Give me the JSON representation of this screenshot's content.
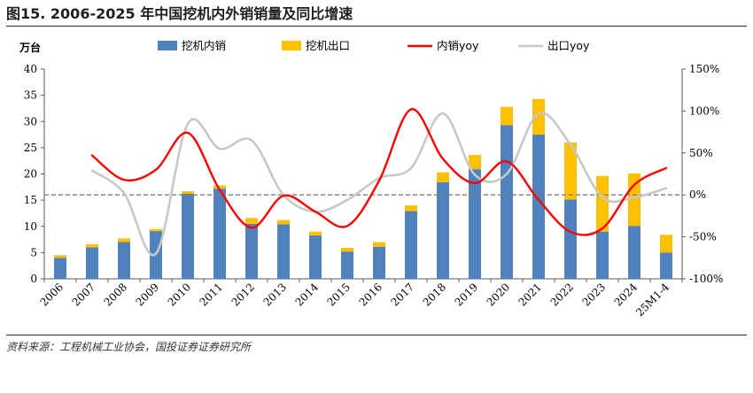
{
  "title": "图15. 2006-2025 年中国挖机内外销销量及同比增速",
  "source": "资料来源：工程机械工业协会，国投证券证券研究所",
  "chart_data": {
    "type": "bar+line",
    "unit_label": "万台",
    "categories": [
      "2006",
      "2007",
      "2008",
      "2009",
      "2010",
      "2011",
      "2012",
      "2013",
      "2014",
      "2015",
      "2016",
      "2017",
      "2018",
      "2019",
      "2020",
      "2021",
      "2022",
      "2023",
      "2024",
      "25M1-4"
    ],
    "stacked_bars": [
      {
        "name": "挖机内销",
        "color": "#4f81bd",
        "values": [
          4.0,
          6.0,
          7.0,
          9.1,
          16.2,
          17.2,
          10.5,
          10.4,
          8.3,
          5.2,
          6.1,
          12.9,
          18.4,
          20.9,
          29.3,
          27.5,
          15.1,
          9.0,
          10.1,
          5.0
        ]
      },
      {
        "name": "挖机出口",
        "color": "#ffc000",
        "values": [
          0.5,
          0.6,
          0.7,
          0.4,
          0.5,
          0.6,
          1.1,
          0.8,
          0.7,
          0.7,
          0.9,
          1.1,
          1.9,
          2.7,
          3.5,
          6.8,
          10.9,
          10.6,
          10.0,
          3.4
        ]
      }
    ],
    "lines": [
      {
        "name": "内销yoy",
        "color": "#ff0000",
        "values": [
          null,
          47,
          18,
          30,
          74,
          6,
          -39,
          -1,
          -20,
          -37,
          17,
          102,
          43,
          14,
          40,
          -6,
          -44,
          -40,
          12,
          32
        ]
      },
      {
        "name": "出口yoy",
        "color": "#c8c8c8",
        "values": [
          null,
          29,
          2,
          -70,
          85,
          55,
          65,
          0,
          -20,
          -6,
          20,
          32,
          97,
          24,
          25,
          97,
          60,
          -3,
          -3,
          8
        ]
      }
    ],
    "y_left": {
      "min": 0,
      "max": 40,
      "step": 5,
      "ticks": [
        "0",
        "5",
        "10",
        "15",
        "20",
        "25",
        "30",
        "35",
        "40"
      ]
    },
    "y_right": {
      "min": -100,
      "max": 150,
      "step": 50,
      "ticks": [
        "-100%",
        "-50%",
        "0%",
        "50%",
        "100%",
        "150%"
      ]
    },
    "reference_line": {
      "value": 0,
      "axis": "right",
      "style": "dashed",
      "color": "#7f7f7f"
    },
    "legend": {
      "placement": "top",
      "items": [
        "挖机内销",
        "挖机出口",
        "内销yoy",
        "出口yoy"
      ]
    },
    "grid": false
  }
}
